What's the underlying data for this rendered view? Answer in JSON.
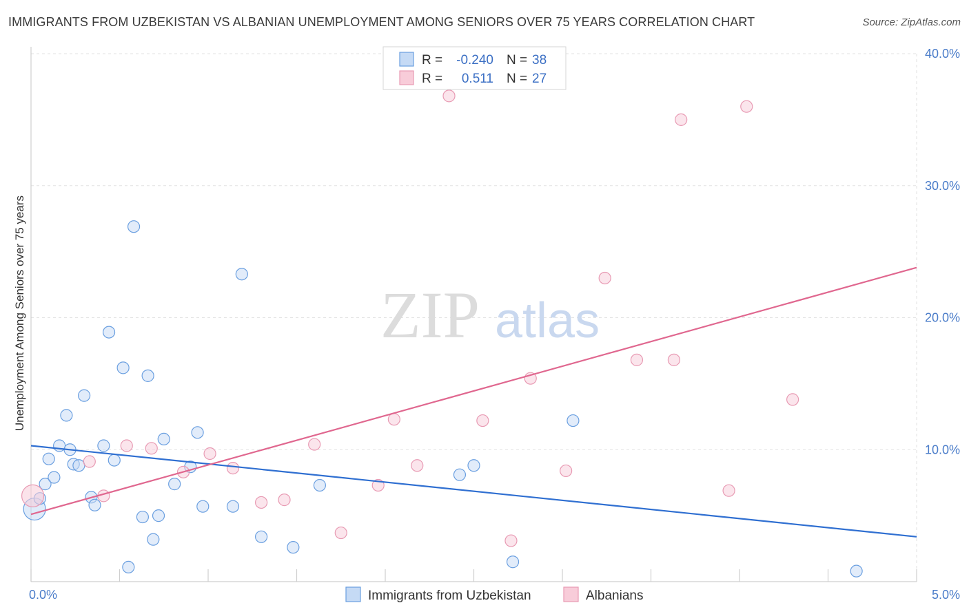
{
  "title": "IMMIGRANTS FROM UZBEKISTAN VS ALBANIAN UNEMPLOYMENT AMONG SENIORS OVER 75 YEARS CORRELATION CHART",
  "source": "Source: ZipAtlas.com",
  "watermark": {
    "zip": "ZIP",
    "atlas": "atlas"
  },
  "chart_data": {
    "type": "scatter",
    "title": "IMMIGRANTS FROM UZBEKISTAN VS ALBANIAN UNEMPLOYMENT AMONG SENIORS OVER 75 YEARS CORRELATION CHART",
    "xlabel": "",
    "ylabel": "Unemployment Among Seniors over 75 years",
    "xlim": [
      0,
      5
    ],
    "ylim": [
      0,
      40
    ],
    "x_ticks": [
      {
        "value": 0,
        "label": "0.0%"
      },
      {
        "value": 5,
        "label": "5.0%"
      }
    ],
    "y_ticks": [
      {
        "value": 10,
        "label": "10.0%"
      },
      {
        "value": 20,
        "label": "20.0%"
      },
      {
        "value": 30,
        "label": "30.0%"
      },
      {
        "value": 40,
        "label": "40.0%"
      }
    ],
    "grid": true,
    "legend_position": "bottom-center",
    "stats_box": [
      {
        "r_label": "R =",
        "r_value": "-0.240",
        "n_label": "N =",
        "n_value": "38"
      },
      {
        "r_label": "R =",
        "r_value": "0.511",
        "n_label": "N =",
        "n_value": "27"
      }
    ],
    "series": [
      {
        "name": "Immigrants from Uzbekistan",
        "color": "#6a9fe0",
        "fill": "#c5daf5",
        "line_color": "#2f6fd1",
        "trend": {
          "x": [
            0,
            5
          ],
          "y": [
            10.3,
            3.4
          ]
        },
        "points": [
          {
            "x": 0.02,
            "y": 5.5,
            "big": true
          },
          {
            "x": 0.05,
            "y": 6.3
          },
          {
            "x": 0.08,
            "y": 7.4
          },
          {
            "x": 0.1,
            "y": 9.3
          },
          {
            "x": 0.13,
            "y": 7.9
          },
          {
            "x": 0.16,
            "y": 10.3
          },
          {
            "x": 0.2,
            "y": 12.6
          },
          {
            "x": 0.22,
            "y": 10.0
          },
          {
            "x": 0.24,
            "y": 8.9
          },
          {
            "x": 0.27,
            "y": 8.8
          },
          {
            "x": 0.3,
            "y": 14.1
          },
          {
            "x": 0.34,
            "y": 6.4
          },
          {
            "x": 0.36,
            "y": 5.8
          },
          {
            "x": 0.41,
            "y": 10.3
          },
          {
            "x": 0.44,
            "y": 18.9
          },
          {
            "x": 0.47,
            "y": 9.2
          },
          {
            "x": 0.52,
            "y": 16.2
          },
          {
            "x": 0.55,
            "y": 1.1
          },
          {
            "x": 0.58,
            "y": 26.9
          },
          {
            "x": 0.63,
            "y": 4.9
          },
          {
            "x": 0.66,
            "y": 15.6
          },
          {
            "x": 0.69,
            "y": 3.2
          },
          {
            "x": 0.72,
            "y": 5.0
          },
          {
            "x": 0.75,
            "y": 10.8
          },
          {
            "x": 0.81,
            "y": 7.4
          },
          {
            "x": 0.9,
            "y": 8.7
          },
          {
            "x": 0.94,
            "y": 11.3
          },
          {
            "x": 0.97,
            "y": 5.7
          },
          {
            "x": 1.14,
            "y": 5.7
          },
          {
            "x": 1.19,
            "y": 23.3
          },
          {
            "x": 1.3,
            "y": 3.4
          },
          {
            "x": 1.48,
            "y": 2.6
          },
          {
            "x": 1.63,
            "y": 7.3
          },
          {
            "x": 2.42,
            "y": 8.1
          },
          {
            "x": 2.5,
            "y": 8.8
          },
          {
            "x": 2.72,
            "y": 1.5
          },
          {
            "x": 3.06,
            "y": 12.2
          },
          {
            "x": 4.66,
            "y": 0.8
          }
        ]
      },
      {
        "name": "Albanians",
        "color": "#e89ab3",
        "fill": "#f8ccd9",
        "line_color": "#e0678f",
        "trend": {
          "x": [
            0,
            5
          ],
          "y": [
            5.1,
            23.8
          ]
        },
        "points": [
          {
            "x": 0.01,
            "y": 6.5,
            "big": true
          },
          {
            "x": 0.33,
            "y": 9.1
          },
          {
            "x": 0.41,
            "y": 6.5
          },
          {
            "x": 0.54,
            "y": 10.3
          },
          {
            "x": 0.68,
            "y": 10.1
          },
          {
            "x": 0.86,
            "y": 8.3
          },
          {
            "x": 1.01,
            "y": 9.7
          },
          {
            "x": 1.14,
            "y": 8.6
          },
          {
            "x": 1.3,
            "y": 6.0
          },
          {
            "x": 1.43,
            "y": 6.2
          },
          {
            "x": 1.6,
            "y": 10.4
          },
          {
            "x": 1.75,
            "y": 3.7
          },
          {
            "x": 1.96,
            "y": 7.3
          },
          {
            "x": 2.05,
            "y": 12.3
          },
          {
            "x": 2.18,
            "y": 8.8
          },
          {
            "x": 2.36,
            "y": 36.8
          },
          {
            "x": 2.55,
            "y": 12.2
          },
          {
            "x": 2.71,
            "y": 3.1
          },
          {
            "x": 2.82,
            "y": 15.4
          },
          {
            "x": 3.02,
            "y": 8.4
          },
          {
            "x": 3.24,
            "y": 23.0
          },
          {
            "x": 3.42,
            "y": 16.8
          },
          {
            "x": 3.67,
            "y": 35.0
          },
          {
            "x": 3.63,
            "y": 16.8
          },
          {
            "x": 3.94,
            "y": 6.9
          },
          {
            "x": 4.04,
            "y": 36.0
          },
          {
            "x": 4.3,
            "y": 13.8
          }
        ]
      }
    ]
  }
}
